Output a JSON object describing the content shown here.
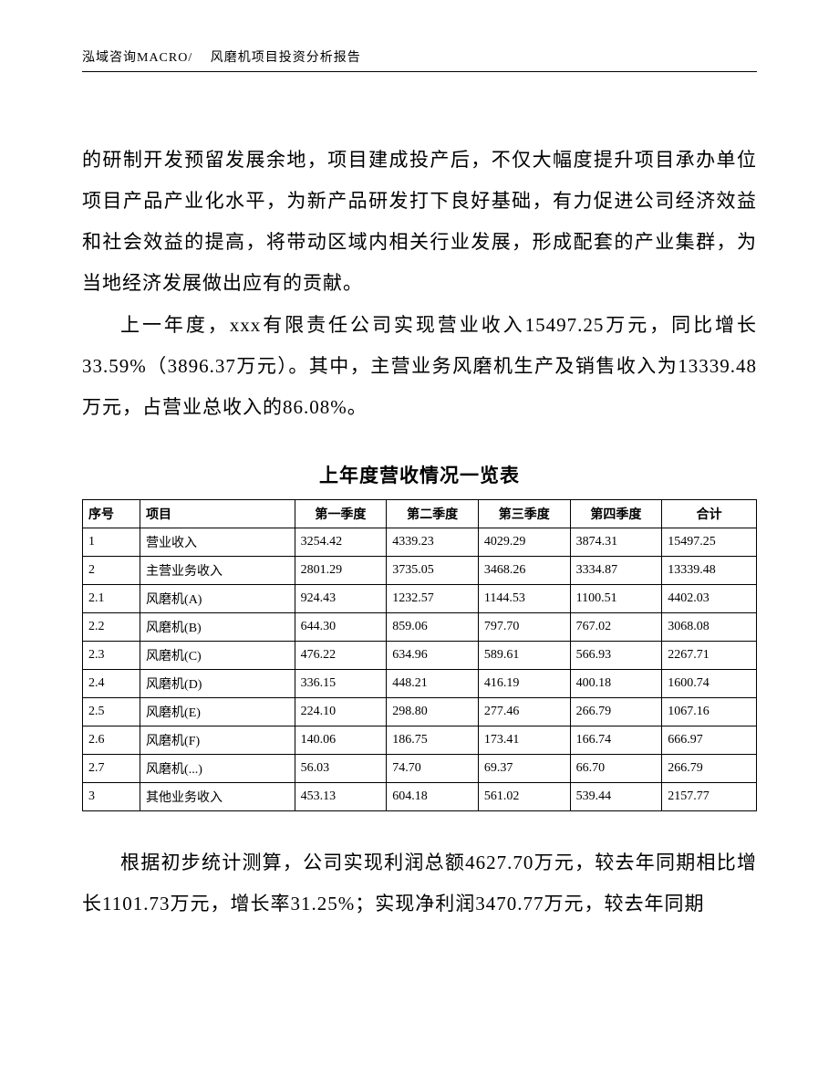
{
  "header": {
    "text": "泓域咨询MACRO/　 风磨机项目投资分析报告"
  },
  "paragraphs": {
    "p1": "的研制开发预留发展余地，项目建成投产后，不仅大幅度提升项目承办单位项目产品产业化水平，为新产品研发打下良好基础，有力促进公司经济效益和社会效益的提高，将带动区域内相关行业发展，形成配套的产业集群，为当地经济发展做出应有的贡献。",
    "p2": "上一年度，xxx有限责任公司实现营业收入15497.25万元，同比增长33.59%（3896.37万元）。其中，主营业务风磨机生产及销售收入为13339.48万元，占营业总收入的86.08%。",
    "p3": "根据初步统计测算，公司实现利润总额4627.70万元，较去年同期相比增长1101.73万元，增长率31.25%；实现净利润3470.77万元，较去年同期"
  },
  "table": {
    "title": "上年度营收情况一览表",
    "columns": [
      "序号",
      "项目",
      "第一季度",
      "第二季度",
      "第三季度",
      "第四季度",
      "合计"
    ],
    "rows": [
      [
        "1",
        "营业收入",
        "3254.42",
        "4339.23",
        "4029.29",
        "3874.31",
        "15497.25"
      ],
      [
        "2",
        "主营业务收入",
        "2801.29",
        "3735.05",
        "3468.26",
        "3334.87",
        "13339.48"
      ],
      [
        "2.1",
        "风磨机(A)",
        "924.43",
        "1232.57",
        "1144.53",
        "1100.51",
        "4402.03"
      ],
      [
        "2.2",
        "风磨机(B)",
        "644.30",
        "859.06",
        "797.70",
        "767.02",
        "3068.08"
      ],
      [
        "2.3",
        "风磨机(C)",
        "476.22",
        "634.96",
        "589.61",
        "566.93",
        "2267.71"
      ],
      [
        "2.4",
        "风磨机(D)",
        "336.15",
        "448.21",
        "416.19",
        "400.18",
        "1600.74"
      ],
      [
        "2.5",
        "风磨机(E)",
        "224.10",
        "298.80",
        "277.46",
        "266.79",
        "1067.16"
      ],
      [
        "2.6",
        "风磨机(F)",
        "140.06",
        "186.75",
        "173.41",
        "166.74",
        "666.97"
      ],
      [
        "2.7",
        "风磨机(...)",
        "56.03",
        "74.70",
        "69.37",
        "66.70",
        "266.79"
      ],
      [
        "3",
        "其他业务收入",
        "453.13",
        "604.18",
        "561.02",
        "539.44",
        "2157.77"
      ]
    ]
  }
}
